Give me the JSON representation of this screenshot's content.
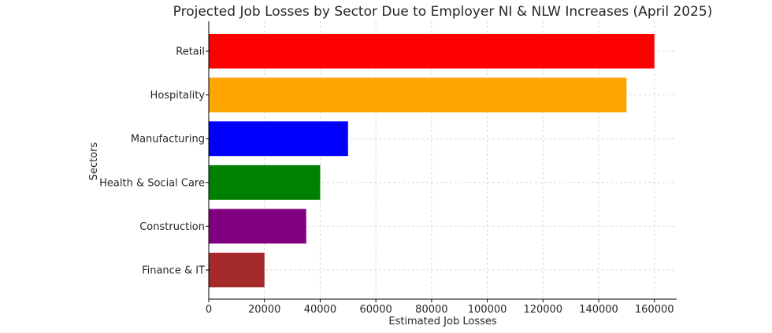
{
  "chart_data": {
    "type": "bar",
    "orientation": "horizontal",
    "title": "Projected Job Losses by Sector Due to Employer NI & NLW Increases (April 2025)",
    "xlabel": "Estimated Job Losses",
    "ylabel": "Sectors",
    "categories": [
      "Retail",
      "Hospitality",
      "Manufacturing",
      "Health & Social Care",
      "Construction",
      "Finance & IT"
    ],
    "values": [
      160000,
      150000,
      50000,
      40000,
      35000,
      20000
    ],
    "colors": [
      "#ff0000",
      "#ffa500",
      "#0000ff",
      "#008000",
      "#800080",
      "#a52a2a"
    ],
    "xlim": [
      0,
      168000
    ],
    "xticks": [
      0,
      20000,
      40000,
      60000,
      80000,
      100000,
      120000,
      140000,
      160000
    ],
    "grid": true
  }
}
